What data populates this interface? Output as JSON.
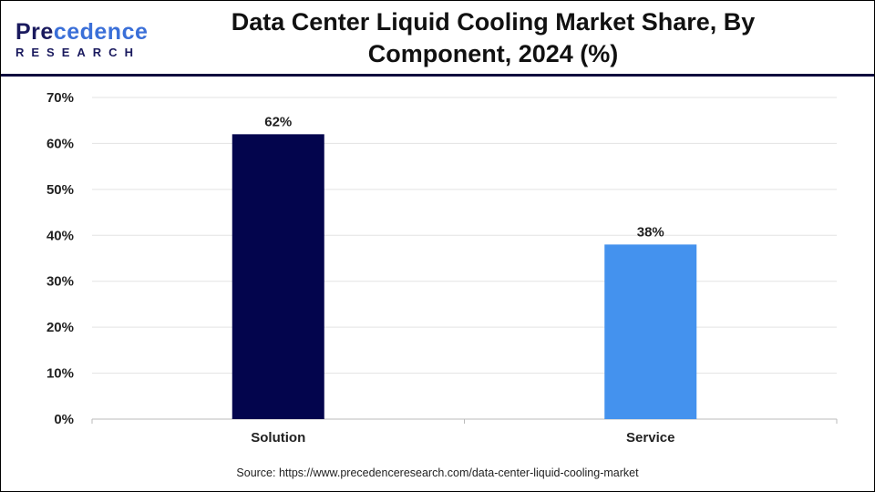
{
  "header": {
    "title": "Data Center Liquid Cooling Market Share, By Component, 2024 (%)",
    "logo_line1": "Precedence",
    "logo_line2": "RESEARCH"
  },
  "source": "Source: https://www.precedenceresearch.com/data-center-liquid-cooling-market",
  "chart_data": {
    "type": "bar",
    "title": "Data Center Liquid Cooling Market Share, By Component, 2024 (%)",
    "categories": [
      "Solution",
      "Service"
    ],
    "values": [
      62,
      38
    ],
    "data_labels": [
      "62%",
      "38%"
    ],
    "colors": [
      "#03054d",
      "#4492ee"
    ],
    "ylim": [
      0,
      70
    ],
    "yticks": [
      "0%",
      "10%",
      "20%",
      "30%",
      "40%",
      "50%",
      "60%",
      "70%"
    ],
    "grid": true,
    "xlabel": "",
    "ylabel": ""
  }
}
